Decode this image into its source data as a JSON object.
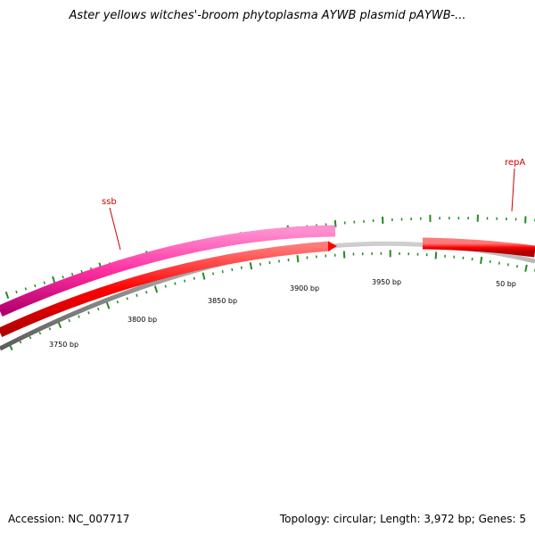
{
  "title": "Aster yellows witches'-broom phytoplasma AYWB plasmid pAYWB-...",
  "footer": {
    "accession": "Accession: NC_007717",
    "summary": "Topology: circular; Length: 3,972 bp; Genes: 5"
  },
  "map": {
    "length_bp": 3972,
    "topology": "circular",
    "visible_range_bp": [
      3730,
      80
    ],
    "scale_labels": [
      {
        "bp": 3750,
        "label": "3750 bp"
      },
      {
        "bp": 3800,
        "label": "3800 bp"
      },
      {
        "bp": 3850,
        "label": "3850 bp"
      },
      {
        "bp": 3900,
        "label": "3900 bp"
      },
      {
        "bp": 3950,
        "label": "3950 bp"
      },
      {
        "bp": 50,
        "label": "50 bp"
      }
    ],
    "genes": [
      {
        "name": "ssb",
        "start": 3700,
        "end": 3900,
        "strand": "+",
        "ring": "outer",
        "color": "#ff3399",
        "label_color": "#cc0000"
      },
      {
        "name": "",
        "start": 3700,
        "end": 3902,
        "strand": "+",
        "ring": "inner",
        "color": "#ff0000"
      },
      {
        "name": "repA",
        "start": 3950,
        "end": 120,
        "strand": "-",
        "ring": "outer",
        "color": "#ff0000",
        "label_color": "#cc0000"
      }
    ],
    "colors": {
      "backbone": "#888888",
      "tick": "#228b22",
      "label": "#cc0000"
    }
  }
}
